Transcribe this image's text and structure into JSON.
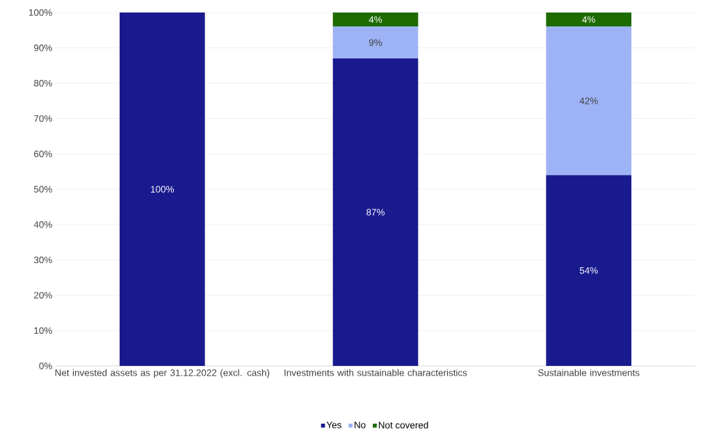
{
  "chart_data": {
    "type": "bar",
    "stacked": true,
    "categories": [
      "Net invested assets as per 31.12.2022 (excl. cash)",
      "Investments with sustainable characteristics",
      "Sustainable investments"
    ],
    "series": [
      {
        "name": "Yes",
        "color": "#1a1a8f",
        "values": [
          100,
          87,
          54
        ],
        "value_labels": [
          "100%",
          "87%",
          "54%"
        ]
      },
      {
        "name": "No",
        "color": "#9db3f5",
        "values": [
          0,
          9,
          42
        ],
        "value_labels": [
          null,
          "9%",
          "42%"
        ]
      },
      {
        "name": "Not covered",
        "color": "#1e6b00",
        "values": [
          0,
          4,
          4
        ],
        "value_labels": [
          null,
          "4%",
          "4%"
        ]
      }
    ],
    "ylim": [
      0,
      100
    ],
    "yticks": [
      {
        "value": 0,
        "label": "0%"
      },
      {
        "value": 10,
        "label": "10%"
      },
      {
        "value": 20,
        "label": "20%"
      },
      {
        "value": 30,
        "label": "30%"
      },
      {
        "value": 40,
        "label": "40%"
      },
      {
        "value": 50,
        "label": "50%"
      },
      {
        "value": 60,
        "label": "60%"
      },
      {
        "value": 70,
        "label": "70%"
      },
      {
        "value": 80,
        "label": "80%"
      },
      {
        "value": 90,
        "label": "90%"
      },
      {
        "value": 100,
        "label": "100%"
      }
    ],
    "grid": "y",
    "legend": "bottom"
  }
}
